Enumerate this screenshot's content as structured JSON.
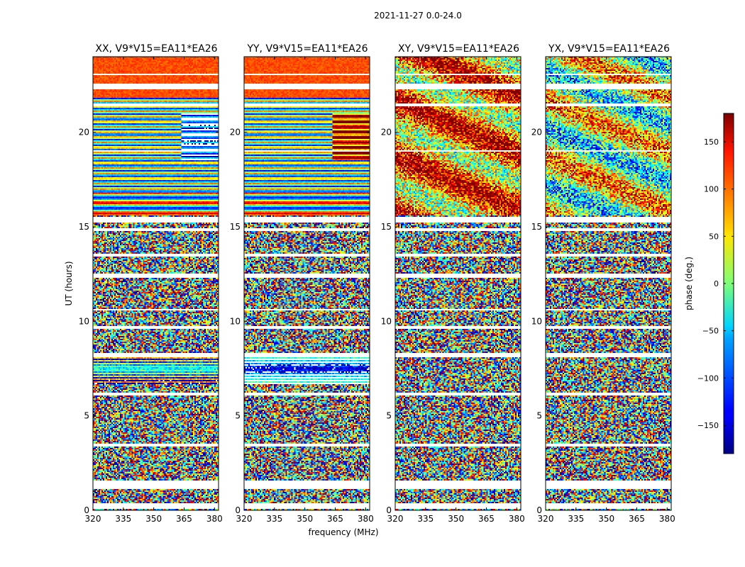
{
  "figure_title": "2021-11-27 0.0-24.0",
  "chart_data": {
    "type": "heatmap",
    "title": "2021-11-27 0.0-24.0",
    "xlabel": "frequency (MHz)",
    "ylabel": "UT (hours)",
    "xlim": [
      320,
      382
    ],
    "ylim": [
      0,
      24
    ],
    "xticks": [
      320,
      335,
      350,
      365,
      380
    ],
    "yticks": [
      0,
      5,
      10,
      15,
      20
    ],
    "panels": [
      {
        "title": "XX, V9*V15=EA11*EA26",
        "pol": "XX"
      },
      {
        "title": "YY, V9*V15=EA11*EA26",
        "pol": "YY"
      },
      {
        "title": "XY, V9*V15=EA11*EA26",
        "pol": "XY"
      },
      {
        "title": "YX, V9*V15=EA11*EA26",
        "pol": "YX"
      }
    ],
    "colorbar": {
      "label": "phase (deg.)",
      "range": [
        -180,
        180
      ],
      "ticks": [
        150,
        100,
        50,
        0,
        -50,
        -100,
        -150
      ],
      "tick_labels": [
        "150",
        "100",
        "50",
        "0",
        "−50",
        "−100",
        "−150"
      ],
      "colormap": "jet"
    },
    "flagged_ut_bands": [
      [
        0.1,
        0.35
      ],
      [
        1.15,
        1.55
      ],
      [
        3.35,
        3.55
      ],
      [
        6.05,
        6.2
      ],
      [
        8.1,
        8.3
      ],
      [
        9.6,
        9.75
      ],
      [
        10.55,
        10.65
      ],
      [
        12.3,
        12.55
      ],
      [
        13.45,
        13.6
      ],
      [
        14.75,
        14.9
      ],
      [
        15.2,
        15.55
      ],
      [
        18.95,
        19.05
      ],
      [
        21.4,
        21.55
      ],
      [
        22.3,
        22.55
      ],
      [
        23.0,
        23.1
      ]
    ]
  }
}
